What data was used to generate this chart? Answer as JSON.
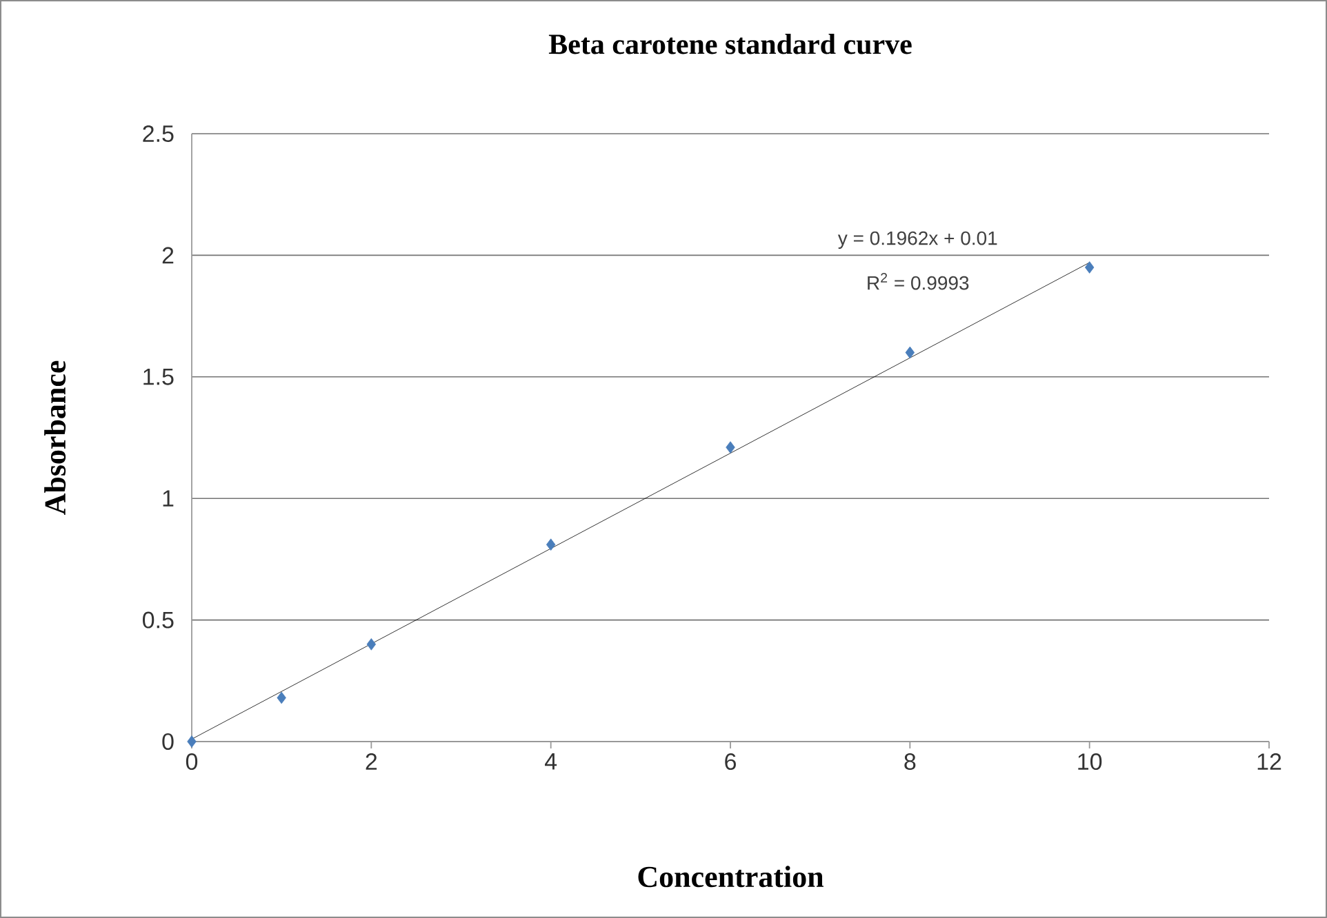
{
  "chart_data": {
    "type": "scatter",
    "title": "Beta carotene standard curve",
    "xlabel": "Concentration",
    "ylabel": "Absorbance",
    "x": [
      0,
      1,
      2,
      4,
      6,
      8,
      10
    ],
    "series": [
      {
        "color": "#4a7ebb",
        "marker": "diamond",
        "values": [
          0,
          0.18,
          0.4,
          0.81,
          1.21,
          1.6,
          1.95
        ]
      },
      {
        "type": "line",
        "color": "#000000",
        "marker": "none",
        "x": [
          0,
          10
        ],
        "values": [
          0.01,
          1.97
        ]
      }
    ],
    "xlim": [
      0,
      12
    ],
    "xticks": [
      0,
      2,
      4,
      6,
      8,
      10,
      12
    ],
    "ylim": [
      0,
      2.5
    ],
    "yticks": [
      0,
      0.5,
      1,
      1.5,
      2,
      2.5
    ],
    "grid": "y",
    "annotations": [
      "y = 0.1962x + 0.01",
      "R$^{2}$ = 0.9993"
    ]
  }
}
